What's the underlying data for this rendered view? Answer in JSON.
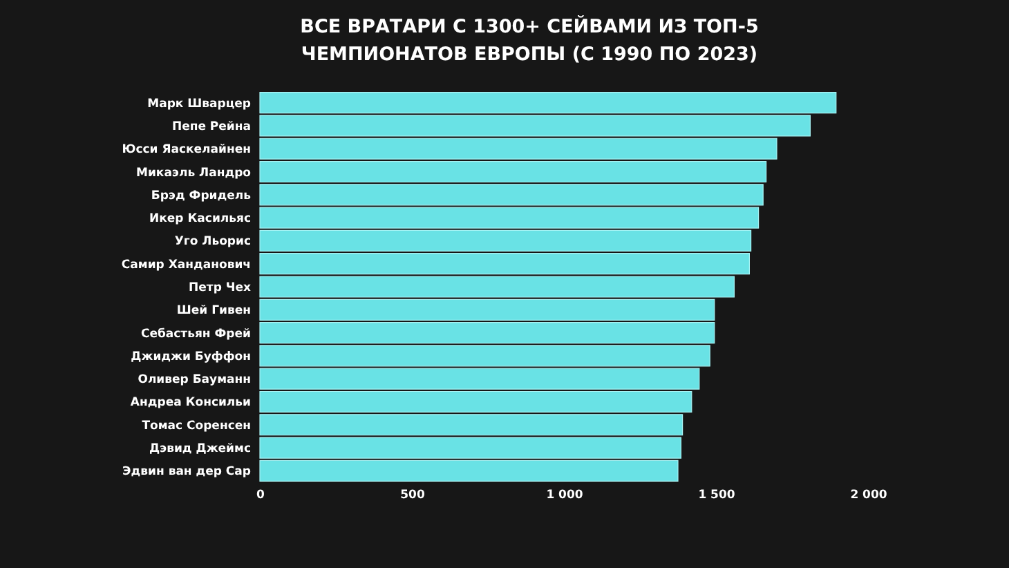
{
  "chart_data": {
    "type": "bar",
    "orientation": "horizontal",
    "title": "ВСЕ ВРАТАРИ С 1300+ СЕЙВАМИ ИЗ ТОП-5 ЧЕМПИОНАТОВ ЕВРОПЫ (С 1990 ПО 2023)",
    "categories": [
      "Марк Шварцер",
      "Пепе Рейна",
      "Юсси Яаскелайнен",
      "Микаэль Ландро",
      "Брэд Фридель",
      "Икер Касильяс",
      "Уго Льорис",
      "Самир Ханданович",
      "Петр Чех",
      "Шей Гивен",
      "Себастьян Фрей",
      "Джиджи Буффон",
      "Оливер Бауманн",
      "Андреа Консильи",
      "Томас Соренсен",
      "Дэвид Джеймс",
      "Эдвин ван дер Сар"
    ],
    "values": [
      1895,
      1810,
      1700,
      1665,
      1655,
      1640,
      1615,
      1610,
      1560,
      1495,
      1495,
      1480,
      1445,
      1420,
      1390,
      1385,
      1375
    ],
    "color": "#69e2e5",
    "xlim": [
      0,
      2000
    ],
    "xticks": [
      0,
      500,
      {
        "value": 1000,
        "label": "1 000"
      },
      {
        "value": 1500,
        "label": "1 500"
      },
      {
        "value": 2000,
        "label": "2 000"
      }
    ]
  }
}
